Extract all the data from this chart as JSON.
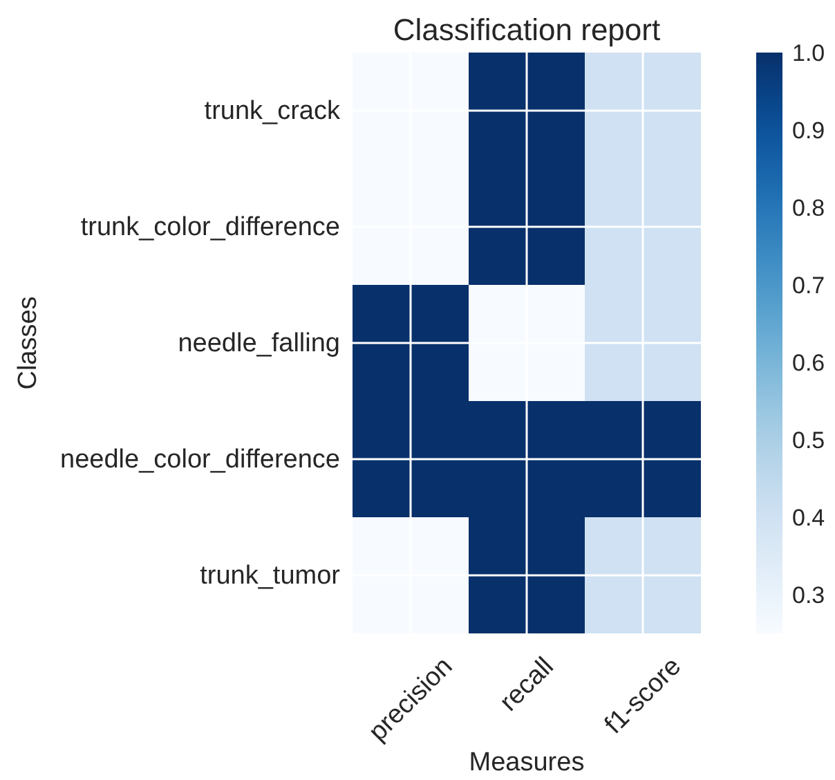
{
  "chart_data": {
    "type": "heatmap",
    "title": "Classification report",
    "xlabel": "Measures",
    "ylabel": "Classes",
    "categories": [
      "precision",
      "recall",
      "f1-score"
    ],
    "y_categories": [
      "trunk_crack",
      "trunk_color_difference",
      "needle_falling",
      "needle_color_difference",
      "trunk_tumor"
    ],
    "cells": [
      [
        0.25,
        1.0,
        0.4
      ],
      [
        0.25,
        1.0,
        0.4
      ],
      [
        1.0,
        0.25,
        0.4
      ],
      [
        1.0,
        1.0,
        1.0
      ],
      [
        0.25,
        1.0,
        0.4
      ]
    ],
    "clim": [
      0.25,
      1.0
    ],
    "cticks": [
      0.3,
      0.4,
      0.5,
      0.6,
      0.7,
      0.8,
      0.9,
      {
        "value": 1,
        "label": "1.0"
      }
    ],
    "grid": true
  }
}
